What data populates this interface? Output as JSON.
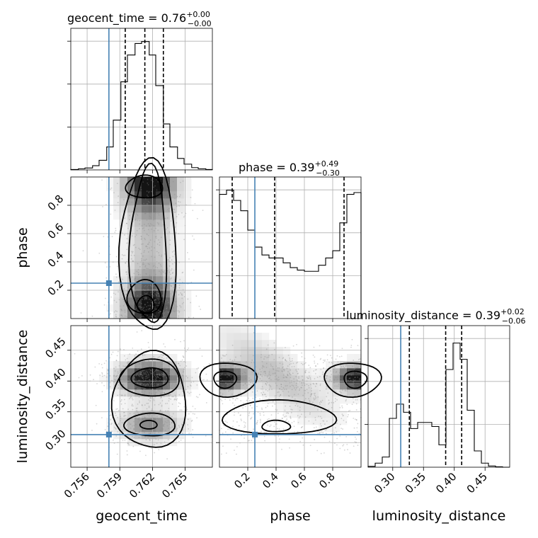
{
  "chart_data": {
    "type": "corner",
    "parameters": [
      "geocent_time",
      "phase",
      "luminosity_distance"
    ],
    "axis_labels": [
      "geocent_time",
      "phase",
      "luminosity_distance"
    ],
    "titles": [
      {
        "text": "geocent_time = 0.76",
        "upper": "+0.00",
        "lower": "−0.00"
      },
      {
        "text": "phase = 0.39",
        "upper": "+0.49",
        "lower": "−0.30"
      },
      {
        "text": "luminosity_distance = 0.39",
        "upper": "+0.02",
        "lower": "−0.06"
      }
    ],
    "ranges": {
      "geocent_time": [
        0.7545,
        0.7675
      ],
      "phase": [
        0.0,
        1.0
      ],
      "luminosity_distance": [
        0.26,
        0.49
      ]
    },
    "ticks": {
      "geocent_time": [
        "0.756",
        "0.759",
        "0.762",
        "0.765"
      ],
      "phase": [
        "0.2",
        "0.4",
        "0.6",
        "0.8"
      ],
      "luminosity_distance": [
        "0.30",
        "0.35",
        "0.40",
        "0.45"
      ],
      "luminosity_distance_y": [
        "0.30",
        "0.35",
        "0.40",
        "0.45"
      ]
    },
    "tick_values": {
      "geocent_time": [
        0.756,
        0.759,
        0.762,
        0.765
      ],
      "phase": [
        0.2,
        0.4,
        0.6,
        0.8
      ],
      "luminosity_distance": [
        0.3,
        0.35,
        0.4,
        0.45
      ]
    },
    "injection": {
      "geocent_time": 0.758,
      "phase": 0.25,
      "luminosity_distance": 0.313
    },
    "quantiles": {
      "geocent_time": [
        0.7595,
        0.7613,
        0.763
      ],
      "phase": [
        0.09,
        0.39,
        0.88
      ],
      "luminosity_distance": [
        0.327,
        0.386,
        0.412
      ]
    },
    "histograms": {
      "geocent_time": {
        "edges": [
          0.7545,
          0.7552,
          0.7558,
          0.7565,
          0.7571,
          0.7578,
          0.7584,
          0.7591,
          0.7597,
          0.7604,
          0.761,
          0.7617,
          0.7623,
          0.763,
          0.7636,
          0.7643,
          0.7649,
          0.7656,
          0.7662,
          0.7669,
          0.7675
        ],
        "counts": [
          1,
          3,
          5,
          11,
          25,
          60,
          130,
          230,
          300,
          330,
          335,
          300,
          220,
          120,
          60,
          30,
          15,
          6,
          3,
          1
        ],
        "max": 340
      },
      "phase": {
        "edges": [
          0.0,
          0.05,
          0.1,
          0.15,
          0.2,
          0.25,
          0.3,
          0.35,
          0.4,
          0.45,
          0.5,
          0.55,
          0.6,
          0.65,
          0.7,
          0.75,
          0.8,
          0.85,
          0.9,
          0.95,
          1.0
        ],
        "counts": [
          205,
          212,
          195,
          178,
          146,
          118,
          105,
          100,
          100,
          92,
          84,
          80,
          78,
          78,
          88,
          100,
          112,
          158,
          205,
          208
        ],
        "max": 215
      },
      "luminosity_distance": {
        "edges": [
          0.26,
          0.2715,
          0.283,
          0.2945,
          0.306,
          0.3175,
          0.329,
          0.3405,
          0.352,
          0.3635,
          0.375,
          0.3865,
          0.398,
          0.4095,
          0.421,
          0.4325,
          0.444,
          0.4555,
          0.467,
          0.4785,
          0.49
        ],
        "counts": [
          2,
          10,
          25,
          120,
          155,
          135,
          95,
          110,
          110,
          100,
          55,
          240,
          305,
          265,
          140,
          40,
          10,
          3,
          1,
          0
        ],
        "max": 320
      }
    }
  }
}
